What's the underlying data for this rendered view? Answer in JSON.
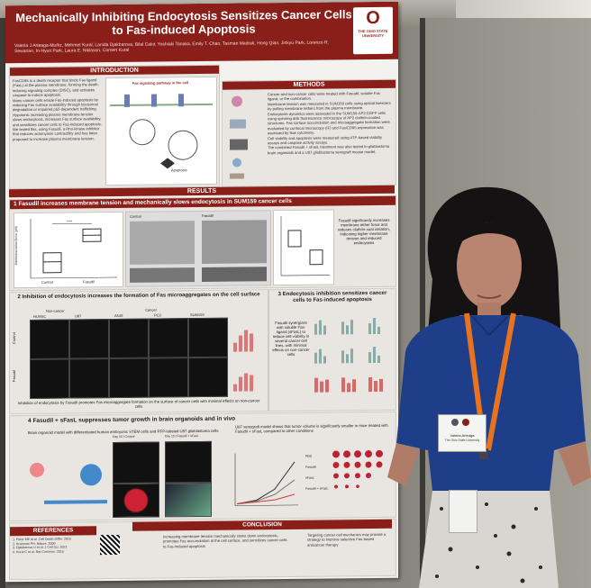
{
  "poster": {
    "title": "Mechanically Inhibiting Endocytosis Sensitizes Cancer Cells to Fas-induced Apoptosis",
    "authors": "Valeria J Arteaga-Muñiz, Mehmet Kural, Lanida Djakbarova, Bilal Cakir, Yoshiaki Tanaka, Emily T. Chan, Tasman Madrak, Hong Qian, Jinkyu Park, Lorenzo R. Sewanan, In-Hyun Park, Laura E. Niklason, Comert Kural",
    "university": "THE OHIO STATE UNIVERSITY",
    "logo_letter": "O",
    "introduction": {
      "heading": "INTRODUCTION",
      "diagram_label": "Fas signaling pathway in the cell",
      "cell_label": "Apoptosis",
      "bullets": [
        "FasCD95 is a death receptor that binds Fas ligand (FasL) at the plasma membrane, forming the death-inducing signaling complex (DISC), and activates caspase to induce apoptosis.",
        "Many cancer cells evade Fas-induced apoptosis by reducing Fas surface availability through lysosomal degradation or impaired p53-dependent trafficking.",
        "Hypotonic increasing plasma membrane tension slows endocytosis, increases Fas surface availability, and sensitizes cancer cells to Fas-induced apoptosis.",
        "We tested this, using Fasudil, a Rho-kinase inhibitor that reduces actomyosin contractility and has been proposed to increase plasma membrane tension."
      ]
    },
    "methods": {
      "heading": "METHODS",
      "bullets": [
        "Cancer and non-cancer cells were treated with Fasudil, soluble Fas ligand, or the combination.",
        "Membrane tension was measured in SUM159 cells using optical tweezers by pulling membrane tethers from the plasma membrane.",
        "Endocytosis dynamics were assessed in the SUM159-AP2-EGFP cells using spinning disk fluorescence microscopy of AP2 clathrin-coated structures. Fas surface accumulation and microaggregate formation were evaluated by confocal microscopy (IF) and Fas/CD95 expression was assessed by flow cytometry.",
        "Cell viability and apoptosis were measured using ATP-based viability assays and caspase activity assays.",
        "The combined Fasudil + sFasL treatment was also tested in glioblastoma brain organoids and a U87 glioblastoma xenograft mouse model."
      ]
    },
    "results_heading": "RESULTS",
    "r1": {
      "num": "1",
      "heading": "Fasudil increases membrane tension and mechanically slows endocytosis in SUM159 cancer cells",
      "panel_control": "Control",
      "panel_fasudil": "Fasudil",
      "yaxis": "Membrane tether force (pN)",
      "xcontrol": "Control",
      "xfasudil": "Fasudil",
      "stat": "****",
      "note": "Fasudil significantly increases membrane tether force and reduces clathrin-coat initiation, indicating higher membrane tension and reduced endocytosis"
    },
    "r2": {
      "num": "2",
      "heading": "Inhibition of endocytosis increases the formation of Fas microaggregates on the cell surface",
      "cols": [
        "HUVEC",
        "U87",
        "A549",
        "PC3",
        "SUM159"
      ],
      "col_group_left": "Non-cancer",
      "col_group_right": "Cancer",
      "rows": [
        "Control",
        "Fasudil"
      ],
      "caption": "Inhibition of endocytosis by Fasudil promotes Fas microaggregate formation on the surface of cancer cells with minimal effects on non-cancer cells"
    },
    "r3": {
      "num": "3",
      "heading": "Endocytosis inhibition sensitizes cancer cells to Fas-induced apoptosis",
      "note": "Fasudil synergizes with soluble Fas-ligand (sFasL) to reduce cell viability in several cancer cell lines, with minimal effects on non-cancer cells"
    },
    "r4": {
      "num": "4",
      "heading": "Fasudil + sFasL suppresses tumor growth in brain organoids and in vivo",
      "organoid_text": "Brain organoid model with differentiated human embryonic STEM cells and RFP-labeled U87 glioblastoma cells",
      "organoid_ctrl": "Day 15 | Control",
      "organoid_fas": "Day 15 | Fasudil + sFasL",
      "xenograft_text": "U87 xenograft model shows that tumor volume is significantly smaller in mice treated with Fasudil + sFasL compared to other conditions",
      "tumor_rows": [
        "PBS",
        "Fasudil",
        "sFasL",
        "Fasudil + sFasL"
      ]
    },
    "conclusion": {
      "heading": "CONCLUSION",
      "text_left": "Increasing membrane tension mechanically slows down endocytosis, promotes Fas accumulation at the cell surface, and sensitizes cancer cells to Fas-induced apoptosis",
      "text_right": "Targeting cancer-cell mechanics may provide a strategy to improve selective Fas-based anticancer therapy"
    },
    "references": {
      "heading": "REFERENCES",
      "items": [
        "1. Peter ME et al. Cell Death Differ. 2015",
        "2. Krammer PH. Nature. 2000",
        "3. Djakbarova U et al. J Cell Sci. 2021",
        "4. Kural C et al. Nat Commun. 2015"
      ]
    }
  },
  "badge": {
    "name": "Valeria Arteaga",
    "org": "The Ohio State University"
  },
  "colors": {
    "poster_header": "#8a1f1a",
    "lanyard": "#e8731e",
    "shirt": "#1f3e8a"
  }
}
